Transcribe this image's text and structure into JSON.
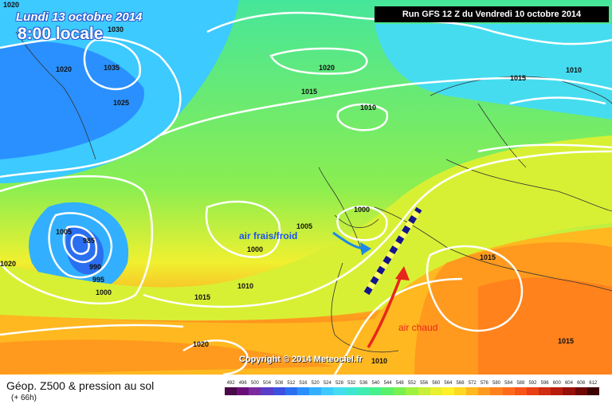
{
  "header": {
    "date": "Lundi 13 octobre 2014",
    "time": "8:00 locale",
    "run": "Run GFS 12 Z du Vendredi 10 octobre 2014"
  },
  "annotations": {
    "cold_air": "air frais/froid",
    "warm_air": "air chaud",
    "cold_arrow_color": "#1e88e5",
    "warm_arrow_color": "#e8261b",
    "front_color": "#14148c"
  },
  "isobars": [
    "1020",
    "1030",
    "1035",
    "1020",
    "1025",
    "1020",
    "1015",
    "1010",
    "1010",
    "1015",
    "1000",
    "1005",
    "1000",
    "1005",
    "985",
    "990",
    "995",
    "1000",
    "1020",
    "1010",
    "1015",
    "1015",
    "1020",
    "1010",
    "1015"
  ],
  "copyright": "Copyright © 2014 Meteociel.fr",
  "footer": {
    "caption": "Géop. Z500 & pression au sol",
    "subcaption": "(+ 66h)"
  },
  "scale": {
    "labels": [
      "492",
      "496",
      "500",
      "504",
      "508",
      "512",
      "516",
      "520",
      "524",
      "528",
      "532",
      "536",
      "540",
      "544",
      "548",
      "552",
      "556",
      "560",
      "564",
      "568",
      "572",
      "576",
      "580",
      "584",
      "588",
      "592",
      "596",
      "600",
      "604",
      "608",
      "612"
    ],
    "colors": [
      "#4a0a4a",
      "#6a0f78",
      "#7a2aa0",
      "#5a3cc8",
      "#3c50e0",
      "#2a6ff0",
      "#2a90ff",
      "#32b0ff",
      "#3ccaff",
      "#46dcf0",
      "#3ee6d2",
      "#40ecb0",
      "#46f08c",
      "#5af06a",
      "#78f050",
      "#a0f040",
      "#c8f038",
      "#e8f030",
      "#fff028",
      "#ffd824",
      "#ffb820",
      "#ff9a1e",
      "#ff821c",
      "#ff6a1a",
      "#f85418",
      "#e84014",
      "#d02c10",
      "#b81c0c",
      "#961008",
      "#6e0804",
      "#3c0000"
    ]
  }
}
